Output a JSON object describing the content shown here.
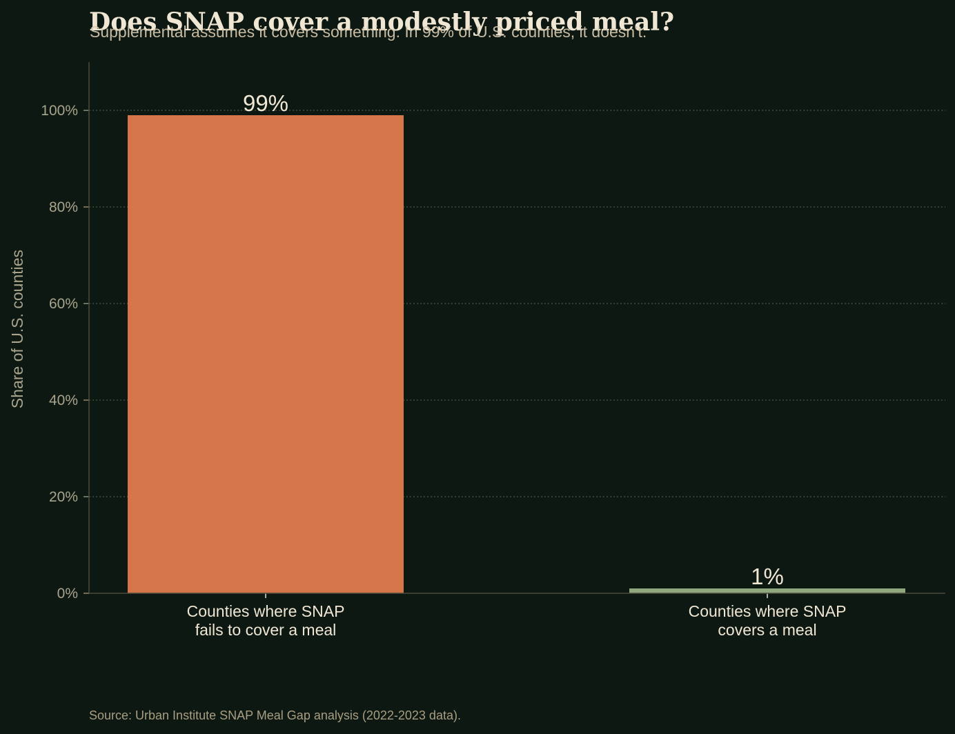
{
  "chart_data": {
    "type": "bar",
    "title": "Does SNAP cover a modestly priced meal?",
    "subtitle": "Supplemental assumes it covers something. In 99% of U.S. counties, it doesn't.",
    "categories": [
      [
        "Counties where SNAP",
        "fails to cover a meal"
      ],
      [
        "Counties where SNAP",
        "covers a meal"
      ]
    ],
    "values": [
      99,
      1
    ],
    "value_labels": [
      "99%",
      "1%"
    ],
    "colors": [
      "#d4754a",
      "#8fa87e"
    ],
    "ylabel": "Share of U.S. counties",
    "ylim": [
      0,
      110
    ],
    "yticks": [
      0,
      20,
      40,
      60,
      80,
      100
    ],
    "ytick_labels": [
      "0%",
      "20%",
      "40%",
      "60%",
      "80%",
      "100%"
    ],
    "grid": true,
    "source": "Source: Urban Institute SNAP Meal Gap analysis (2022-2023 data)."
  }
}
